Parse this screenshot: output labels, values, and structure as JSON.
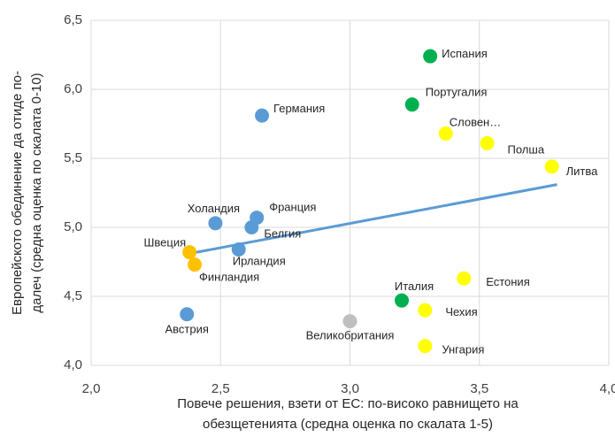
{
  "chart_data": {
    "type": "scatter",
    "labels": [
      "Испания",
      "Португалия",
      "Германия",
      "Словен…",
      "Полша",
      "Литва",
      "Холандия",
      "Франция",
      "Белгия",
      "Швеция",
      "Ирландия",
      "Финландия",
      "Естония",
      "Италия",
      "Чехия",
      "Австрия",
      "Великобритания",
      "Унгария"
    ],
    "x": [
      3.31,
      3.24,
      2.66,
      3.37,
      3.53,
      3.78,
      2.48,
      2.64,
      2.62,
      2.38,
      2.57,
      2.4,
      3.44,
      3.2,
      3.29,
      2.37,
      3.0,
      3.29
    ],
    "y": [
      6.24,
      5.89,
      5.81,
      5.68,
      5.61,
      5.44,
      5.03,
      5.07,
      5.0,
      4.82,
      4.84,
      4.73,
      4.63,
      4.47,
      4.4,
      4.37,
      4.32,
      4.14
    ],
    "colors": [
      "#00b050",
      "#00b050",
      "#5b9bd5",
      "#ffff00",
      "#ffff00",
      "#ffff00",
      "#5b9bd5",
      "#5b9bd5",
      "#5b9bd5",
      "#ffc000",
      "#5b9bd5",
      "#ffc000",
      "#ffff00",
      "#00b050",
      "#ffff00",
      "#5b9bd5",
      "#bfbfbf",
      "#ffff00"
    ],
    "trendline": {
      "x": [
        2.38,
        3.8
      ],
      "y": [
        4.81,
        5.31
      ],
      "color": "#5b9bd5"
    },
    "xlabel": [
      "Повече решения, взети от ЕС: по-високо равнището на",
      "обезщетенията  (средна оценка по скалата 1-5)"
    ],
    "ylabel": [
      "Европейското обединение да отиде по-",
      "далеч (средна оценка по скалата 0-10)"
    ],
    "xlim": [
      2,
      4
    ],
    "xticks": [
      {
        "value": 2,
        "label": "2,0"
      },
      {
        "value": 2.5,
        "label": "2,5"
      },
      {
        "value": 3,
        "label": "3,0"
      },
      {
        "value": 3.5,
        "label": "3,5"
      },
      {
        "value": 4,
        "label": "4,0"
      }
    ],
    "ylim": [
      4,
      6.5
    ],
    "yticks": [
      {
        "value": 4,
        "label": "4,0"
      },
      {
        "value": 4.5,
        "label": "4,5"
      },
      {
        "value": 5,
        "label": "5,0"
      },
      {
        "value": 5.5,
        "label": "5,5"
      },
      {
        "value": 6,
        "label": "6,0"
      },
      {
        "value": 6.5,
        "label": "6,5"
      }
    ],
    "grid": true
  }
}
